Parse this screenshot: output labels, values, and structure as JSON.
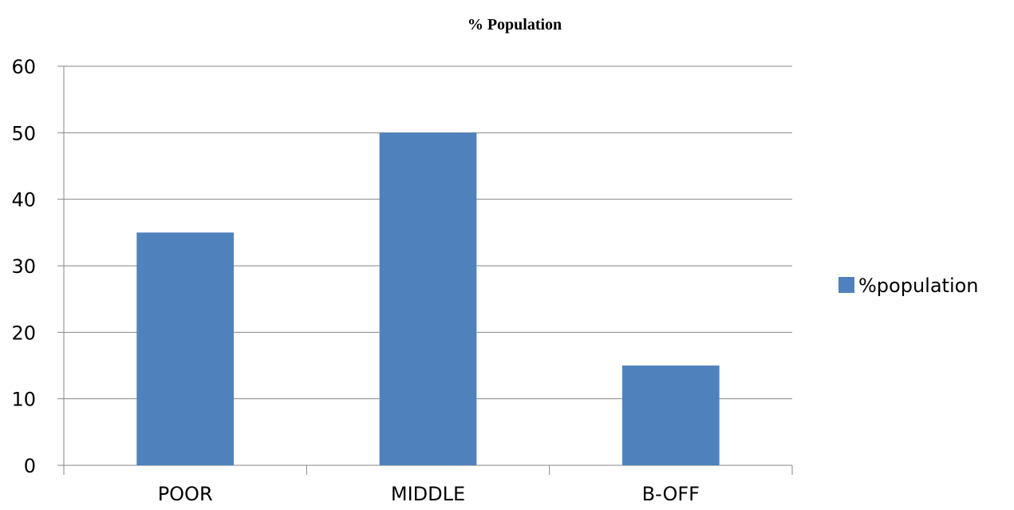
{
  "chart_data": {
    "type": "bar",
    "title": "% Population",
    "xlabel": "",
    "ylabel": "",
    "categories": [
      "POOR",
      "MIDDLE",
      "B-OFF"
    ],
    "series": [
      {
        "name": "%population",
        "values": [
          35,
          50,
          15
        ],
        "color": "#4F81BD"
      }
    ],
    "ylim": [
      0,
      60
    ],
    "yticks": [
      0,
      10,
      20,
      30,
      40,
      50,
      60
    ],
    "grid": true,
    "legend_position": "right"
  }
}
